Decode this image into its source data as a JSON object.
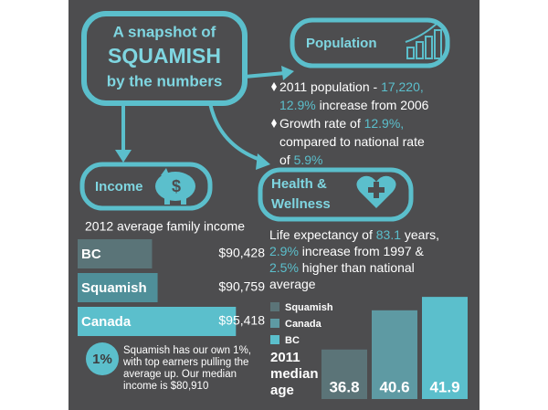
{
  "title": [
    "A snapshot of",
    "SQUAMISH",
    "by the numbers"
  ],
  "population": {
    "heading": "Population",
    "bullets": [
      [
        [
          {
            "text": "2011 population - ",
            "accent": false
          },
          {
            "text": "17,220,",
            "accent": true
          }
        ],
        [
          {
            "text": "12.9%",
            "accent": true
          },
          {
            "text": " increase from 2006",
            "accent": false
          }
        ]
      ],
      [
        [
          {
            "text": "Growth rate of ",
            "accent": false
          },
          {
            "text": "12.9%,",
            "accent": true
          }
        ],
        [
          {
            "text": "compared to national rate",
            "accent": false
          }
        ],
        [
          {
            "text": "of ",
            "accent": false
          },
          {
            "text": "5.9%",
            "accent": true
          }
        ]
      ]
    ]
  },
  "income": {
    "heading": "Income",
    "icon_label": "$",
    "subtitle": "2012 average family income",
    "badge": "1%",
    "note": [
      "Squamish has our own 1%,",
      "with top earners pulling the",
      "average up. Our median",
      "income is $80,910"
    ]
  },
  "health": {
    "heading": [
      "Health &",
      "Wellness"
    ],
    "text": [
      [
        {
          "text": "Life expectancy of ",
          "accent": false
        },
        {
          "text": "83.1",
          "accent": true
        },
        {
          "text": " years,",
          "accent": false
        }
      ],
      [
        {
          "text": "2.9%",
          "accent": true
        },
        {
          "text": " increase from 1997 &",
          "accent": false
        }
      ],
      [
        {
          "text": "2.5%",
          "accent": true
        },
        {
          "text": " higher than national",
          "accent": false
        }
      ],
      [
        {
          "text": "average",
          "accent": false
        }
      ]
    ]
  },
  "age_label": [
    "2011",
    "median",
    "age"
  ],
  "chart_data": [
    {
      "type": "bar",
      "orientation": "horizontal",
      "categories": [
        "BC",
        "Squamish",
        "Canada"
      ],
      "values": [
        90428,
        90759,
        95418
      ],
      "value_labels": [
        "$90,428",
        "$90,759",
        "$95,418"
      ],
      "colors": [
        "#5a7478",
        "#4f8f99",
        "#5bbfcc"
      ],
      "xlim": [
        86000,
        96000
      ]
    },
    {
      "type": "bar",
      "orientation": "vertical",
      "categories": [
        "Squamish",
        "Canada",
        "BC"
      ],
      "values": [
        36.8,
        40.6,
        41.9
      ],
      "colors": [
        "#5b7478",
        "#5e9aa3",
        "#5bbfcc"
      ],
      "ylim": [
        32,
        42
      ],
      "legend": true
    }
  ]
}
